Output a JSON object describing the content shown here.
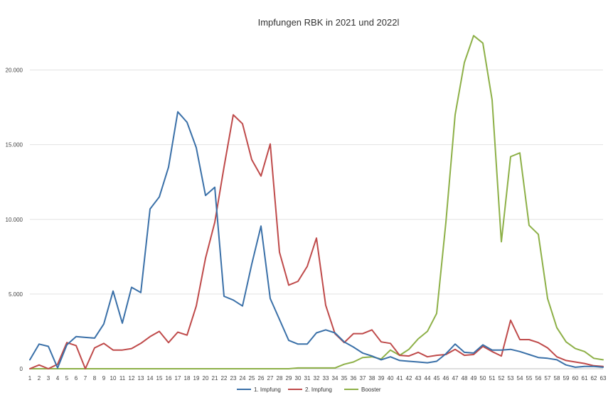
{
  "chart_data": {
    "type": "line",
    "title": "Impfungen RBK in 2021 und 2022l",
    "xlabel": "",
    "ylabel": "",
    "ylim": [
      0,
      22500
    ],
    "yticks": [
      0,
      5000,
      10000,
      15000,
      20000
    ],
    "ytick_labels": [
      "0",
      "5.000",
      "10.000",
      "15.000",
      "20.000"
    ],
    "grid": true,
    "legend_position": "bottom",
    "categories": [
      "1",
      "2",
      "3",
      "4",
      "5",
      "6",
      "7",
      "8",
      "9",
      "10",
      "11",
      "12",
      "13",
      "14",
      "15",
      "16",
      "17",
      "18",
      "19",
      "20",
      "21",
      "22",
      "23",
      "24",
      "25",
      "26",
      "27",
      "28",
      "29",
      "30",
      "31",
      "32",
      "33",
      "34",
      "35",
      "36",
      "37",
      "38",
      "39",
      "40",
      "41",
      "42",
      "43",
      "44",
      "45",
      "46",
      "47",
      "48",
      "49",
      "50",
      "51",
      "52",
      "53",
      "54",
      "55",
      "56",
      "57",
      "58",
      "59",
      "60",
      "61",
      "62",
      "63"
    ],
    "series": [
      {
        "name": "1. Impfung",
        "color": "#3a70a8",
        "values": [
          600,
          1650,
          1500,
          50,
          1600,
          2150,
          2100,
          2050,
          3000,
          5200,
          3050,
          5450,
          5100,
          10700,
          11500,
          13500,
          17200,
          16500,
          14800,
          11600,
          12150,
          4850,
          4600,
          4200,
          7000,
          9550,
          4700,
          3300,
          1900,
          1650,
          1650,
          2400,
          2600,
          2400,
          1800,
          1450,
          1050,
          850,
          600,
          800,
          550,
          500,
          450,
          400,
          500,
          1000,
          1650,
          1100,
          1050,
          1600,
          1250,
          1250,
          1300,
          1150,
          950,
          750,
          700,
          600,
          250,
          100,
          150,
          150,
          100
        ]
      },
      {
        "name": "2. Impfung",
        "color": "#bf4a4a",
        "values": [
          0,
          250,
          0,
          300,
          1750,
          1550,
          0,
          1400,
          1700,
          1250,
          1250,
          1350,
          1700,
          2150,
          2500,
          1750,
          2450,
          2250,
          4200,
          7400,
          9800,
          13500,
          17000,
          16400,
          14000,
          12900,
          15050,
          7800,
          5600,
          5850,
          6850,
          8750,
          4250,
          2350,
          1750,
          2350,
          2350,
          2600,
          1800,
          1700,
          900,
          850,
          1100,
          800,
          900,
          950,
          1300,
          900,
          950,
          1500,
          1150,
          850,
          3250,
          1950,
          1950,
          1750,
          1400,
          800,
          550,
          450,
          350,
          200,
          150
        ]
      },
      {
        "name": "Booster",
        "color": "#8db047",
        "values": [
          0,
          0,
          0,
          0,
          0,
          0,
          0,
          0,
          0,
          0,
          0,
          0,
          0,
          0,
          0,
          0,
          0,
          0,
          0,
          0,
          0,
          0,
          0,
          0,
          0,
          0,
          0,
          0,
          0,
          50,
          50,
          50,
          50,
          50,
          300,
          450,
          750,
          800,
          650,
          1250,
          900,
          1300,
          2000,
          2500,
          3700,
          9800,
          17000,
          20500,
          22300,
          21800,
          18000,
          8500,
          14200,
          14450,
          9600,
          9000,
          4700,
          2750,
          1800,
          1350,
          1150,
          700,
          600
        ]
      }
    ]
  }
}
